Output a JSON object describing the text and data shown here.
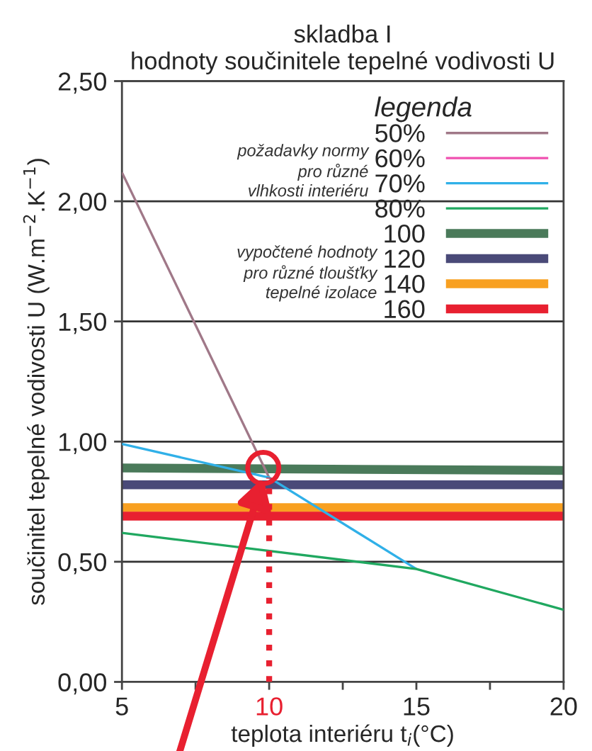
{
  "chart_data": {
    "type": "line",
    "title": "skladba I\nhodnoty součinitele tepelné vodivosti U",
    "xlabel": "teplota interiéru t$_{i}$(°C)",
    "ylabel": "součinitel tepelné vodivosti U (W.m$^{−2}$.K$^{−1}$)",
    "legend_title": "legenda",
    "annotations": [
      "požadavky normy\npro různé\nvlhkosti interiéru",
      "vypočtené hodnoty\npro různé tloušťky\ntepelné izolace"
    ],
    "series": [
      {
        "name": "50%",
        "color": "#a07888",
        "x": [
          5,
          10
        ],
        "values": [
          2.12,
          0.85
        ]
      },
      {
        "name": "60%",
        "color": "#f050b0"
      },
      {
        "name": "70%",
        "color": "#30b0e8",
        "x": [
          5,
          10,
          15
        ],
        "values": [
          0.99,
          0.85,
          0.47
        ]
      },
      {
        "name": "80%",
        "color": "#20a860",
        "x": [
          5,
          15,
          20
        ],
        "values": [
          0.62,
          0.47,
          0.3
        ]
      },
      {
        "name": "100",
        "color": "#4a7a5a",
        "x": [
          5,
          20
        ],
        "values": [
          0.89,
          0.88
        ]
      },
      {
        "name": "120",
        "color": "#4a4a78",
        "x": [
          5,
          20
        ],
        "values": [
          0.82,
          0.82
        ]
      },
      {
        "name": "140",
        "color": "#f8a020",
        "x": [
          5,
          20
        ],
        "values": [
          0.725,
          0.725
        ]
      },
      {
        "name": "160",
        "color": "#e82030",
        "x": [
          5,
          20
        ],
        "values": [
          0.69,
          0.69
        ]
      }
    ],
    "xlim": [
      5,
      20
    ],
    "xticks": [
      5,
      {
        "value": 7.5,
        "label": null
      },
      10,
      {
        "value": 12.5,
        "label": null
      },
      15,
      {
        "value": 17.5,
        "label": null
      },
      20
    ],
    "ylim": [
      0,
      2.5
    ],
    "yticks": [
      {
        "value": 0,
        "label": "0,00"
      },
      {
        "value": 0.5,
        "label": "0,50"
      },
      {
        "value": 1,
        "label": "1,00"
      },
      {
        "value": 1.5,
        "label": "1,50"
      },
      {
        "value": 2,
        "label": "2,00"
      },
      {
        "value": 2.5,
        "label": "2,50"
      }
    ],
    "ref_lines": [
      {
        "axis": "x",
        "value": 10,
        "color": "#e82030",
        "line_style": "dotted"
      }
    ],
    "grid": "y",
    "legend": "top right",
    "marker": "none",
    "line_style": "solid"
  }
}
